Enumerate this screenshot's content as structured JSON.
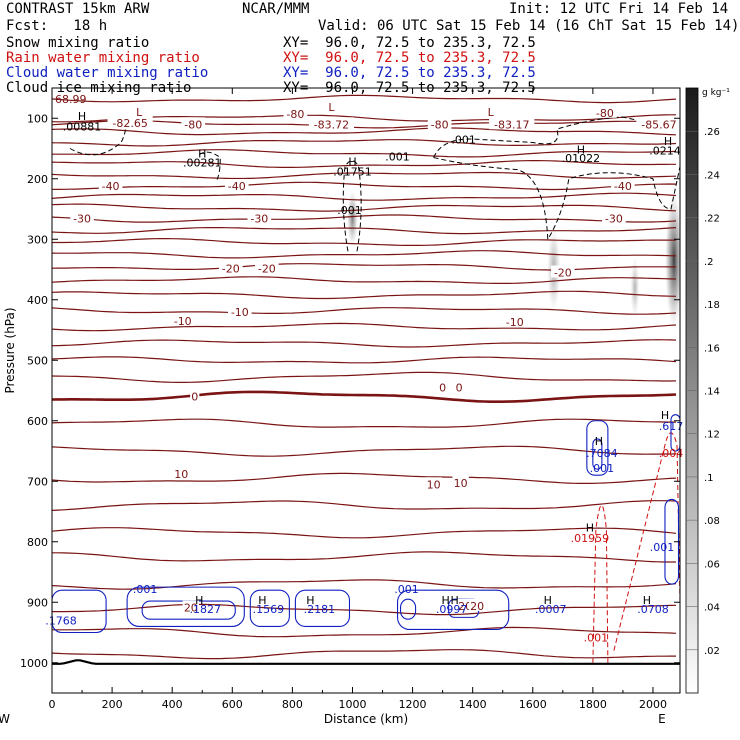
{
  "header": {
    "model": "CONTRAST 15km ARW",
    "producer": "NCAR/MMM",
    "init": "Init: 12 UTC Fri 14 Feb 14",
    "fcst": "Fcst:   18 h",
    "valid": "Valid: 06 UTC Sat 15 Feb 14 (16 ChT Sat 15 Feb 14)"
  },
  "fields": [
    {
      "label": "Snow mixing ratio",
      "xy": "XY=  96.0, 72.5 to 235.3, 72.5",
      "color": "#000000"
    },
    {
      "label": "Rain water mixing ratio",
      "xy": "XY=  96.0, 72.5 to 235.3, 72.5",
      "color": "#d01010"
    },
    {
      "label": "Cloud water mixing ratio",
      "xy": "XY=  96.0, 72.5 to 235.3, 72.5",
      "color": "#1020c0"
    },
    {
      "label": "Cloud ice mixing ratio",
      "xy": "XY=  96.0, 72.5 to 235.3, 72.5",
      "color": "#000000"
    }
  ],
  "chart_data": {
    "type": "heatmap",
    "xlabel": "Distance (km)",
    "ylabel": "Pressure (hPa)",
    "xlim": [
      0,
      2090
    ],
    "ylim": [
      50,
      1050
    ],
    "x_ticks": [
      0,
      200,
      400,
      600,
      800,
      1000,
      1200,
      1400,
      1600,
      1800,
      2000
    ],
    "y_ticks": [
      100,
      200,
      300,
      400,
      500,
      600,
      700,
      800,
      900,
      1000
    ],
    "end_labels": [
      "W",
      "E"
    ],
    "colorbar": {
      "unit": "g kg⁻¹",
      "ticks": [
        ".02",
        ".04",
        ".06",
        ".08",
        ".1",
        ".12",
        ".14",
        ".16",
        ".18",
        ".2",
        ".22",
        ".24",
        ".26"
      ]
    },
    "temperature_contours": {
      "color": "#7a1414",
      "lines": [
        {
          "p": 68,
          "label": "68.99"
        },
        {
          "p": 100
        },
        {
          "p": 110,
          "label": "-80"
        },
        {
          "p": 122,
          "label": "-80"
        },
        {
          "p": 140
        },
        {
          "p": 158
        },
        {
          "p": 176
        },
        {
          "p": 194
        },
        {
          "p": 212,
          "label": "-40"
        },
        {
          "p": 230
        },
        {
          "p": 248
        },
        {
          "p": 266,
          "label": "-30"
        },
        {
          "p": 285
        },
        {
          "p": 305
        },
        {
          "p": 325
        },
        {
          "p": 345,
          "label": "-20"
        },
        {
          "p": 368
        },
        {
          "p": 392,
          "label": "-10"
        },
        {
          "p": 418,
          "label": "-10"
        },
        {
          "p": 445
        },
        {
          "p": 472
        },
        {
          "p": 500
        },
        {
          "p": 528
        },
        {
          "p": 560,
          "label": "0",
          "bold": true
        },
        {
          "p": 605
        },
        {
          "p": 650
        },
        {
          "p": 695,
          "label": "10"
        },
        {
          "p": 740
        },
        {
          "p": 785
        },
        {
          "p": 825
        },
        {
          "p": 870
        },
        {
          "p": 912
        },
        {
          "p": 950
        },
        {
          "p": 985
        }
      ]
    },
    "temperature_labels": [
      {
        "x": 260,
        "p": 108,
        "text": "-82.65"
      },
      {
        "x": 470,
        "p": 110,
        "text": "-80"
      },
      {
        "x": 810,
        "p": 93,
        "text": "-80"
      },
      {
        "x": 930,
        "p": 110,
        "text": "-83.72"
      },
      {
        "x": 1290,
        "p": 110,
        "text": "-80"
      },
      {
        "x": 1530,
        "p": 110,
        "text": "-83.17"
      },
      {
        "x": 1840,
        "p": 91,
        "text": "-80"
      },
      {
        "x": 2020,
        "p": 110,
        "text": "-85.67"
      },
      {
        "x": 195,
        "p": 212,
        "text": "-40"
      },
      {
        "x": 615,
        "p": 212,
        "text": "-40"
      },
      {
        "x": 1900,
        "p": 212,
        "text": "-40"
      },
      {
        "x": 100,
        "p": 266,
        "text": "-30"
      },
      {
        "x": 690,
        "p": 266,
        "text": "-30"
      },
      {
        "x": 1870,
        "p": 266,
        "text": "-30"
      },
      {
        "x": 595,
        "p": 348,
        "text": "-20"
      },
      {
        "x": 715,
        "p": 348,
        "text": "-20"
      },
      {
        "x": 1700,
        "p": 355,
        "text": "-20"
      },
      {
        "x": 435,
        "p": 435,
        "text": "-10"
      },
      {
        "x": 625,
        "p": 420,
        "text": "-10"
      },
      {
        "x": 1540,
        "p": 437,
        "text": "-10"
      },
      {
        "x": 475,
        "p": 560,
        "text": "0"
      },
      {
        "x": 1300,
        "p": 545,
        "text": "0"
      },
      {
        "x": 1355,
        "p": 545,
        "text": "0"
      },
      {
        "x": 430,
        "p": 688,
        "text": "10"
      },
      {
        "x": 1270,
        "p": 705,
        "text": "10"
      },
      {
        "x": 1360,
        "p": 703,
        "text": "10"
      },
      {
        "x": 462,
        "p": 909,
        "text": "20"
      },
      {
        "x": 1375,
        "p": 906,
        "text": "20"
      },
      {
        "x": 1415,
        "p": 906,
        "text": "20"
      }
    ],
    "extrema_labels": [
      {
        "x": 100,
        "p": 120,
        "text": ".00881",
        "color": "#000000"
      },
      {
        "x": 500,
        "p": 180,
        "text": ".00281",
        "color": "#000000"
      },
      {
        "x": 1000,
        "p": 195,
        "text": ".01751",
        "color": "#000000"
      },
      {
        "x": 990,
        "p": 258,
        "text": ".001",
        "color": "#000000"
      },
      {
        "x": 1370,
        "p": 142,
        "text": ".001",
        "color": "#000000"
      },
      {
        "x": 1150,
        "p": 170,
        "text": ".001",
        "color": "#000000"
      },
      {
        "x": 1760,
        "p": 172,
        "text": ".01022",
        "color": "#000000"
      },
      {
        "x": 2040,
        "p": 160,
        "text": ".0214",
        "color": "#000000"
      },
      {
        "x": 1830,
        "p": 660,
        "text": ".7084",
        "color": "#1020c0"
      },
      {
        "x": 1830,
        "p": 685,
        "text": ".001",
        "color": "#1020c0"
      },
      {
        "x": 2060,
        "p": 615,
        "text": ".617",
        "color": "#1020c0"
      },
      {
        "x": 2060,
        "p": 660,
        "text": ".004",
        "color": "#d01010"
      },
      {
        "x": 1790,
        "p": 800,
        "text": ".01959",
        "color": "#d01010"
      },
      {
        "x": 2030,
        "p": 815,
        "text": ".001",
        "color": "#1020c0"
      },
      {
        "x": 1810,
        "p": 965,
        "text": ".001",
        "color": "#d01010"
      },
      {
        "x": 30,
        "p": 937,
        "text": ".1768",
        "color": "#1020c0"
      },
      {
        "x": 310,
        "p": 885,
        "text": ".001",
        "color": "#1020c0"
      },
      {
        "x": 510,
        "p": 918,
        "text": ".1827",
        "color": "#1020c0"
      },
      {
        "x": 720,
        "p": 918,
        "text": ".1569",
        "color": "#1020c0"
      },
      {
        "x": 890,
        "p": 918,
        "text": ".2181",
        "color": "#1020c0"
      },
      {
        "x": 1180,
        "p": 885,
        "text": ".001",
        "color": "#1020c0"
      },
      {
        "x": 1330,
        "p": 918,
        "text": ".0997",
        "color": "#1020c0"
      },
      {
        "x": 1660,
        "p": 918,
        "text": ".0007",
        "color": "#1020c0"
      },
      {
        "x": 2000,
        "p": 918,
        "text": ".0708",
        "color": "#1020c0"
      }
    ],
    "h_markers": [
      {
        "x": 100,
        "p": 103
      },
      {
        "x": 500,
        "p": 165
      },
      {
        "x": 1000,
        "p": 178
      },
      {
        "x": 1760,
        "p": 158
      },
      {
        "x": 2050,
        "p": 144
      },
      {
        "x": 1820,
        "p": 640
      },
      {
        "x": 2040,
        "p": 597
      },
      {
        "x": 1790,
        "p": 783
      },
      {
        "x": 490,
        "p": 903
      },
      {
        "x": 700,
        "p": 903
      },
      {
        "x": 860,
        "p": 903
      },
      {
        "x": 1310,
        "p": 903
      },
      {
        "x": 1340,
        "p": 903
      },
      {
        "x": 1650,
        "p": 903
      },
      {
        "x": 1980,
        "p": 903
      }
    ],
    "low_markers": [
      {
        "x": 290,
        "p": 96
      },
      {
        "x": 930,
        "p": 88
      },
      {
        "x": 1460,
        "p": 96
      }
    ],
    "snow_shading": [
      {
        "x": 1000,
        "p": 265,
        "rx": 18,
        "rp": 45,
        "v": 0.12
      },
      {
        "x": 1670,
        "p": 350,
        "rx": 22,
        "rp": 70,
        "v": 0.06
      },
      {
        "x": 1940,
        "p": 380,
        "rx": 15,
        "rp": 50,
        "v": 0.05
      },
      {
        "x": 2070,
        "p": 335,
        "rx": 30,
        "rp": 110,
        "v": 0.22
      }
    ]
  }
}
